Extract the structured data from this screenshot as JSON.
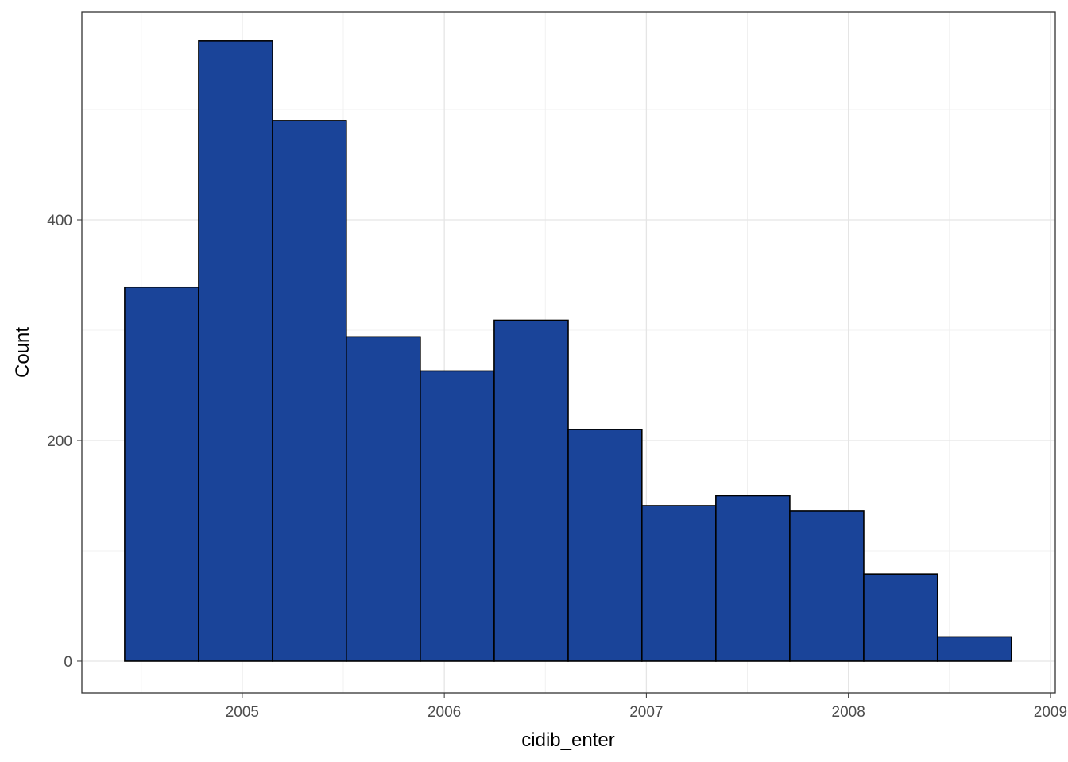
{
  "chart_data": {
    "type": "histogram",
    "x_label": "cidib_enter",
    "y_label": "Count",
    "bins": [
      2004.418,
      2004.784,
      2005.15,
      2005.515,
      2005.881,
      2006.247,
      2006.613,
      2006.978,
      2007.344,
      2007.71,
      2008.076,
      2008.441,
      2008.807
    ],
    "values": [
      339,
      562,
      490,
      294,
      263,
      309,
      210,
      141,
      150,
      136,
      79,
      22
    ],
    "color": "#1a4499",
    "edge_color": "#000000",
    "xlim": [
      2004.206,
      2009.024
    ],
    "ylim": [
      -28.8,
      588.5
    ],
    "xticks": [
      2005,
      2006,
      2007,
      2008,
      2009
    ],
    "yticks": [
      0,
      200,
      400
    ],
    "minor_xticks": [
      2004.5,
      2005.5,
      2006.5,
      2007.5,
      2008.5
    ],
    "minor_yticks": [
      100,
      300,
      500
    ],
    "grid": true
  }
}
